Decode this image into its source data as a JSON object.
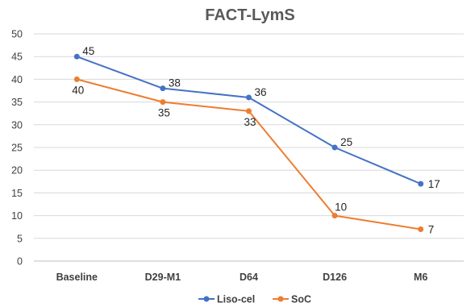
{
  "chart_data": {
    "type": "line",
    "title": "FACT-LymS",
    "xlabel": "",
    "ylabel": "",
    "categories": [
      "Baseline",
      "D29-M1",
      "D64",
      "D126",
      "M6"
    ],
    "ylim": [
      0,
      50
    ],
    "yticks": [
      0,
      5,
      10,
      15,
      20,
      25,
      30,
      35,
      40,
      45,
      50
    ],
    "grid": true,
    "legend_position": "bottom",
    "series": [
      {
        "name": "Liso-cel",
        "values": [
          45,
          38,
          36,
          25,
          17
        ],
        "color": "#4472c4",
        "label_position": "right"
      },
      {
        "name": "SoC",
        "values": [
          40,
          35,
          33,
          10,
          7
        ],
        "color": "#ed7d31",
        "label_position": "auto"
      }
    ]
  }
}
